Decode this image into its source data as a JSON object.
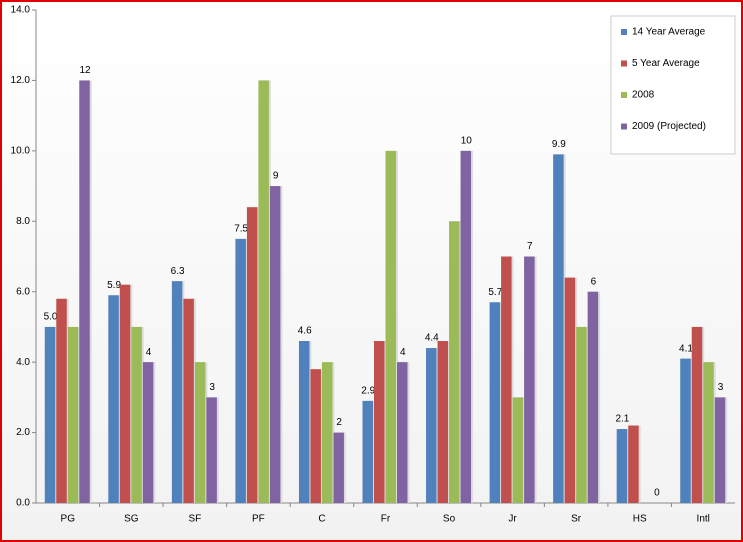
{
  "chart_data": {
    "type": "bar",
    "categories": [
      "PG",
      "SG",
      "SF",
      "PF",
      "C",
      "Fr",
      "So",
      "Jr",
      "Sr",
      "HS",
      "Intl"
    ],
    "series": [
      {
        "name": "14 Year Average",
        "color": "#4f81bd",
        "values": [
          5.0,
          5.9,
          6.3,
          7.5,
          4.6,
          2.9,
          4.4,
          5.7,
          9.9,
          2.1,
          4.1
        ],
        "value_labels": [
          "5.0",
          "5.9",
          "6.3",
          "7.5",
          "4.6",
          "2.9",
          "4.4",
          "5.7",
          "9.9",
          "2.1",
          "4.1"
        ]
      },
      {
        "name": "5 Year Average",
        "color": "#c0504d",
        "values": [
          5.8,
          6.2,
          5.8,
          8.4,
          3.8,
          4.6,
          4.6,
          7.0,
          6.4,
          2.2,
          5.0
        ]
      },
      {
        "name": "2008",
        "color": "#9bbb59",
        "values": [
          5,
          5,
          4,
          12,
          4,
          10,
          8,
          3,
          5,
          0,
          4
        ]
      },
      {
        "name": "2009 (Projected)",
        "color": "#8064a2",
        "values": [
          12,
          4,
          3,
          9,
          2,
          4,
          10,
          7,
          6,
          0,
          3
        ],
        "value_labels": [
          "12",
          "4",
          "3",
          "9",
          "2",
          "4",
          "10",
          "7",
          "6",
          "0",
          "3"
        ]
      }
    ],
    "ylim": [
      0,
      14
    ],
    "yticks": [
      {
        "value": 0,
        "label": "0.0"
      },
      {
        "value": 2,
        "label": "2.0"
      },
      {
        "value": 4,
        "label": "4.0"
      },
      {
        "value": 6,
        "label": "6.0"
      },
      {
        "value": 8,
        "label": "8.0"
      },
      {
        "value": 10,
        "label": "10.0"
      },
      {
        "value": 12,
        "label": "12.0"
      },
      {
        "value": 14,
        "label": "14.0"
      }
    ],
    "legend": "top-right"
  }
}
